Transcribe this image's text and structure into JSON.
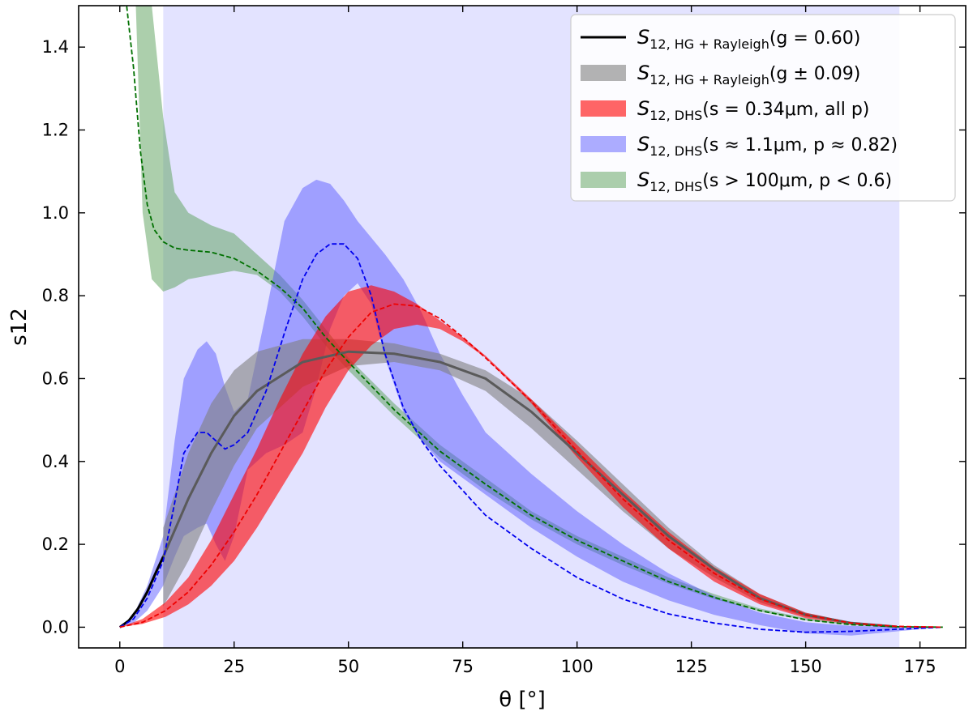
{
  "chart_data": {
    "type": "line",
    "title": "",
    "xlabel": "θ [°]",
    "ylabel": "s12",
    "xlim": [
      -9,
      185
    ],
    "ylim": [
      -0.05,
      1.5
    ],
    "xticks": [
      0,
      25,
      50,
      75,
      100,
      125,
      150,
      175
    ],
    "yticks": [
      0.0,
      0.2,
      0.4,
      0.6,
      0.8,
      1.0,
      1.2,
      1.4
    ],
    "ytick_labels": [
      "0.0",
      "0.2",
      "0.4",
      "0.6",
      "0.8",
      "1.0",
      "1.2",
      "1.4"
    ],
    "observed_range": {
      "x": [
        9.5,
        170.5
      ],
      "color": "#e3e3ff"
    },
    "legend_position": "top-right",
    "series": [
      {
        "name": "S_{12, HG + Rayleigh}(g = 0.60)",
        "legend": {
          "sym": "S",
          "sub": "12, HG + Rayleigh",
          "paren": "(g = 0.60)"
        },
        "kind": "line",
        "color": "#000000",
        "x": [
          0,
          2,
          4,
          6,
          8,
          9.5
        ],
        "y": [
          0.0,
          0.016,
          0.045,
          0.085,
          0.135,
          0.17
        ]
      },
      {
        "name": "S_{12, HG + Rayleigh}(g ± 0.09)",
        "legend": {
          "sym": "S",
          "sub": "12, HG + Rayleigh",
          "paren": "(g ± 0.09)"
        },
        "kind": "band",
        "color": "#808080",
        "opacity": 0.6,
        "x": [
          9.5,
          15,
          20,
          25,
          30,
          40,
          50,
          60,
          70,
          80,
          90,
          100,
          110,
          120,
          130,
          140,
          150,
          160,
          170
        ],
        "lower": [
          0.05,
          0.16,
          0.28,
          0.39,
          0.48,
          0.58,
          0.63,
          0.64,
          0.62,
          0.57,
          0.48,
          0.38,
          0.28,
          0.19,
          0.12,
          0.06,
          0.025,
          0.008,
          0.001
        ],
        "upper": [
          0.24,
          0.42,
          0.54,
          0.62,
          0.665,
          0.695,
          0.695,
          0.685,
          0.66,
          0.62,
          0.55,
          0.45,
          0.345,
          0.24,
          0.15,
          0.08,
          0.035,
          0.012,
          0.002
        ],
        "center": [
          0.17,
          0.31,
          0.42,
          0.51,
          0.57,
          0.64,
          0.665,
          0.66,
          0.64,
          0.6,
          0.52,
          0.42,
          0.32,
          0.22,
          0.14,
          0.07,
          0.03,
          0.01,
          0.001
        ]
      },
      {
        "name": "S_{12, DHS}(s = 0.34μm, all p)",
        "legend": {
          "sym": "S",
          "sub": "12, DHS",
          "paren": "(s = 0.34μm, all p)"
        },
        "kind": "band",
        "color": "#ff0000",
        "opacity": 0.6,
        "x": [
          0,
          5,
          10,
          15,
          20,
          25,
          30,
          35,
          40,
          45,
          50,
          55,
          60,
          65,
          70,
          75,
          80,
          90,
          100,
          110,
          120,
          130,
          140,
          150,
          160,
          170,
          180
        ],
        "lower": [
          0,
          0.008,
          0.025,
          0.055,
          0.1,
          0.16,
          0.24,
          0.33,
          0.42,
          0.53,
          0.62,
          0.68,
          0.72,
          0.73,
          0.72,
          0.69,
          0.65,
          0.54,
          0.41,
          0.29,
          0.19,
          0.11,
          0.055,
          0.022,
          0.007,
          0.001,
          0
        ],
        "upper": [
          0,
          0.02,
          0.06,
          0.12,
          0.21,
          0.32,
          0.43,
          0.55,
          0.66,
          0.75,
          0.81,
          0.825,
          0.81,
          0.78,
          0.74,
          0.7,
          0.655,
          0.55,
          0.44,
          0.33,
          0.23,
          0.145,
          0.08,
          0.035,
          0.012,
          0.002,
          0
        ],
        "center": [
          0,
          0.012,
          0.04,
          0.085,
          0.15,
          0.23,
          0.32,
          0.42,
          0.52,
          0.62,
          0.7,
          0.76,
          0.78,
          0.775,
          0.745,
          0.7,
          0.65,
          0.545,
          0.425,
          0.31,
          0.21,
          0.13,
          0.068,
          0.03,
          0.01,
          0.002,
          0
        ]
      },
      {
        "name": "S_{12, DHS}(s ≈ 1.1μm, p ≈ 0.82)",
        "legend": {
          "sym": "S",
          "sub": "12, DHS",
          "paren": "(s ≈ 1.1μm, p ≈ 0.82)"
        },
        "kind": "band",
        "color": "#4b4bff",
        "opacity": 0.45,
        "x": [
          0,
          3,
          6,
          9.5,
          12,
          14,
          17,
          19,
          21,
          23,
          25,
          28,
          32,
          36,
          40,
          43,
          46,
          49,
          52,
          55,
          58,
          62,
          66,
          70,
          75,
          80,
          90,
          100,
          110,
          120,
          130,
          140,
          150,
          160,
          170,
          180
        ],
        "lower": [
          0,
          0.01,
          0.04,
          0.1,
          0.17,
          0.22,
          0.24,
          0.25,
          0.2,
          0.16,
          0.22,
          0.38,
          0.42,
          0.44,
          0.47,
          0.58,
          0.72,
          0.8,
          0.83,
          0.78,
          0.65,
          0.52,
          0.45,
          0.4,
          0.36,
          0.32,
          0.24,
          0.17,
          0.11,
          0.065,
          0.03,
          0.005,
          -0.015,
          -0.02,
          -0.01,
          0
        ],
        "upper": [
          0,
          0.03,
          0.1,
          0.22,
          0.45,
          0.6,
          0.67,
          0.69,
          0.66,
          0.58,
          0.52,
          0.55,
          0.76,
          0.98,
          1.06,
          1.08,
          1.07,
          1.03,
          0.98,
          0.94,
          0.9,
          0.84,
          0.76,
          0.66,
          0.56,
          0.47,
          0.37,
          0.28,
          0.2,
          0.13,
          0.075,
          0.035,
          0.012,
          0.003,
          0.001,
          0
        ],
        "center": [
          0,
          0.02,
          0.07,
          0.16,
          0.3,
          0.42,
          0.47,
          0.47,
          0.45,
          0.43,
          0.44,
          0.47,
          0.57,
          0.71,
          0.84,
          0.9,
          0.925,
          0.925,
          0.89,
          0.8,
          0.66,
          0.53,
          0.45,
          0.39,
          0.33,
          0.27,
          0.19,
          0.12,
          0.068,
          0.032,
          0.01,
          -0.005,
          -0.012,
          -0.01,
          -0.005,
          0
        ]
      },
      {
        "name": "S_{12, DHS}(s > 100μm, p < 0.6)",
        "legend": {
          "sym": "S",
          "sub": "12, DHS",
          "paren": "(s > 100μm, p < 0.6)"
        },
        "kind": "band",
        "color": "#5aa05a",
        "opacity": 0.5,
        "x": [
          3.5,
          5,
          7,
          9.5,
          12,
          15,
          20,
          25,
          30,
          35,
          40,
          45,
          50,
          60,
          70,
          80,
          90,
          100,
          110,
          120,
          130,
          140,
          150,
          160,
          170,
          180
        ],
        "lower": [
          1.5,
          1.0,
          0.84,
          0.81,
          0.82,
          0.84,
          0.85,
          0.86,
          0.85,
          0.81,
          0.75,
          0.68,
          0.62,
          0.51,
          0.41,
          0.33,
          0.26,
          0.2,
          0.15,
          0.105,
          0.068,
          0.038,
          0.017,
          0.005,
          0.001,
          0
        ],
        "upper": [
          1.5,
          1.5,
          1.5,
          1.23,
          1.05,
          1.0,
          0.97,
          0.95,
          0.9,
          0.85,
          0.79,
          0.72,
          0.65,
          0.54,
          0.44,
          0.36,
          0.28,
          0.22,
          0.17,
          0.12,
          0.08,
          0.045,
          0.022,
          0.008,
          0.002,
          0
        ],
        "center_x": [
          0,
          1.5,
          3,
          4.5,
          6,
          7.5,
          9.5,
          12,
          15,
          20,
          25,
          30,
          35,
          40,
          45,
          50,
          60,
          70,
          80,
          90,
          100,
          110,
          120,
          130,
          140,
          150,
          160,
          170,
          180
        ],
        "center": [
          1.5,
          1.5,
          1.35,
          1.15,
          1.02,
          0.96,
          0.93,
          0.915,
          0.91,
          0.905,
          0.89,
          0.86,
          0.82,
          0.77,
          0.7,
          0.64,
          0.525,
          0.425,
          0.345,
          0.27,
          0.21,
          0.16,
          0.11,
          0.072,
          0.04,
          0.018,
          0.006,
          0.001,
          0
        ],
        "center_color": "#007000"
      }
    ]
  }
}
